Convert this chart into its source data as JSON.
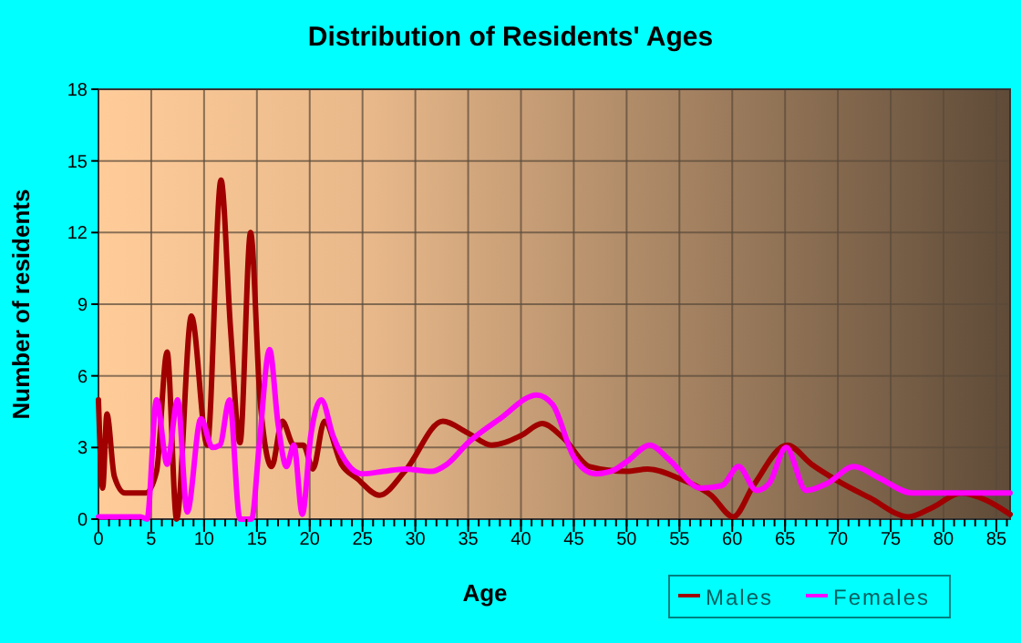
{
  "chart_data": {
    "type": "line",
    "title": "Distribution of Residents' Ages",
    "xlabel": "Age",
    "ylabel": "Number of residents",
    "xlim": [
      0,
      86.3
    ],
    "ylim": [
      0,
      18
    ],
    "xticks": [
      0,
      5,
      10,
      15,
      20,
      25,
      30,
      35,
      40,
      45,
      50,
      55,
      60,
      65,
      70,
      75,
      80,
      85
    ],
    "yticks": [
      0,
      3,
      6,
      9,
      12,
      15,
      18
    ],
    "grid": true,
    "legend": "bottom right",
    "marker": "none",
    "line_style": "solid",
    "series": [
      {
        "name": "Males",
        "color": "#a00000",
        "x": [
          0,
          0.4,
          0.8,
          1.5,
          2.5,
          3.5,
          4.5,
          5.5,
          6.5,
          7.4,
          8.8,
          10.3,
          11.6,
          12.5,
          13.4,
          14.4,
          15.3,
          16.4,
          17.4,
          18.5,
          19.4,
          20.3,
          21.4,
          23,
          24.5,
          26.6,
          29,
          32.6,
          35,
          37.2,
          40,
          42,
          44,
          46.5,
          50,
          52,
          55,
          58,
          60.1,
          62,
          65.2,
          67.5,
          70,
          73,
          76.7,
          79,
          81.7,
          84,
          86.3
        ],
        "values": [
          5,
          1.3,
          4.4,
          1.8,
          1.1,
          1.1,
          1.1,
          2,
          7,
          0,
          8.5,
          3.1,
          14.2,
          8,
          3.2,
          12,
          5,
          2.2,
          4.1,
          3.1,
          3.1,
          2.1,
          4.1,
          2.3,
          1.7,
          1,
          2,
          4.1,
          3.6,
          3.1,
          3.5,
          4,
          3.4,
          2.2,
          2,
          2.1,
          1.7,
          1,
          0.1,
          1.4,
          3.1,
          2.3,
          1.6,
          0.9,
          0.1,
          0.5,
          1.1,
          0.8,
          0.2
        ]
      },
      {
        "name": "Females",
        "color": "#ff00ff",
        "x": [
          0,
          1,
          2,
          3,
          4,
          4.6,
          5.5,
          6.5,
          7.5,
          8.4,
          9.7,
          10.8,
          11.5,
          12.4,
          13.4,
          14.5,
          15.2,
          16.2,
          17,
          17.8,
          18.5,
          19.3,
          20.1,
          21.1,
          22.2,
          24,
          25,
          27,
          29,
          31.5,
          33,
          35,
          38,
          41.5,
          43,
          45,
          47,
          48.5,
          50,
          52.2,
          54,
          57,
          59,
          60.6,
          62.3,
          63.5,
          65.1,
          67,
          69,
          71.5,
          74,
          77,
          80,
          83,
          86.3
        ],
        "values": [
          0.1,
          0.1,
          0.1,
          0.1,
          0.1,
          0,
          5,
          2.3,
          5,
          0.3,
          4.2,
          3,
          3.1,
          5,
          0,
          0,
          3,
          7.1,
          4,
          2.2,
          3.1,
          0.2,
          3.5,
          5,
          3.5,
          2.1,
          1.9,
          2,
          2.1,
          2,
          2.3,
          3.2,
          4.2,
          5.2,
          4.8,
          2.6,
          1.9,
          2,
          2.4,
          3.1,
          2.5,
          1.3,
          1.4,
          2.2,
          1.2,
          1.5,
          3,
          1.2,
          1.5,
          2.2,
          1.7,
          1.1,
          1.1,
          1.1,
          1.1
        ]
      }
    ]
  }
}
